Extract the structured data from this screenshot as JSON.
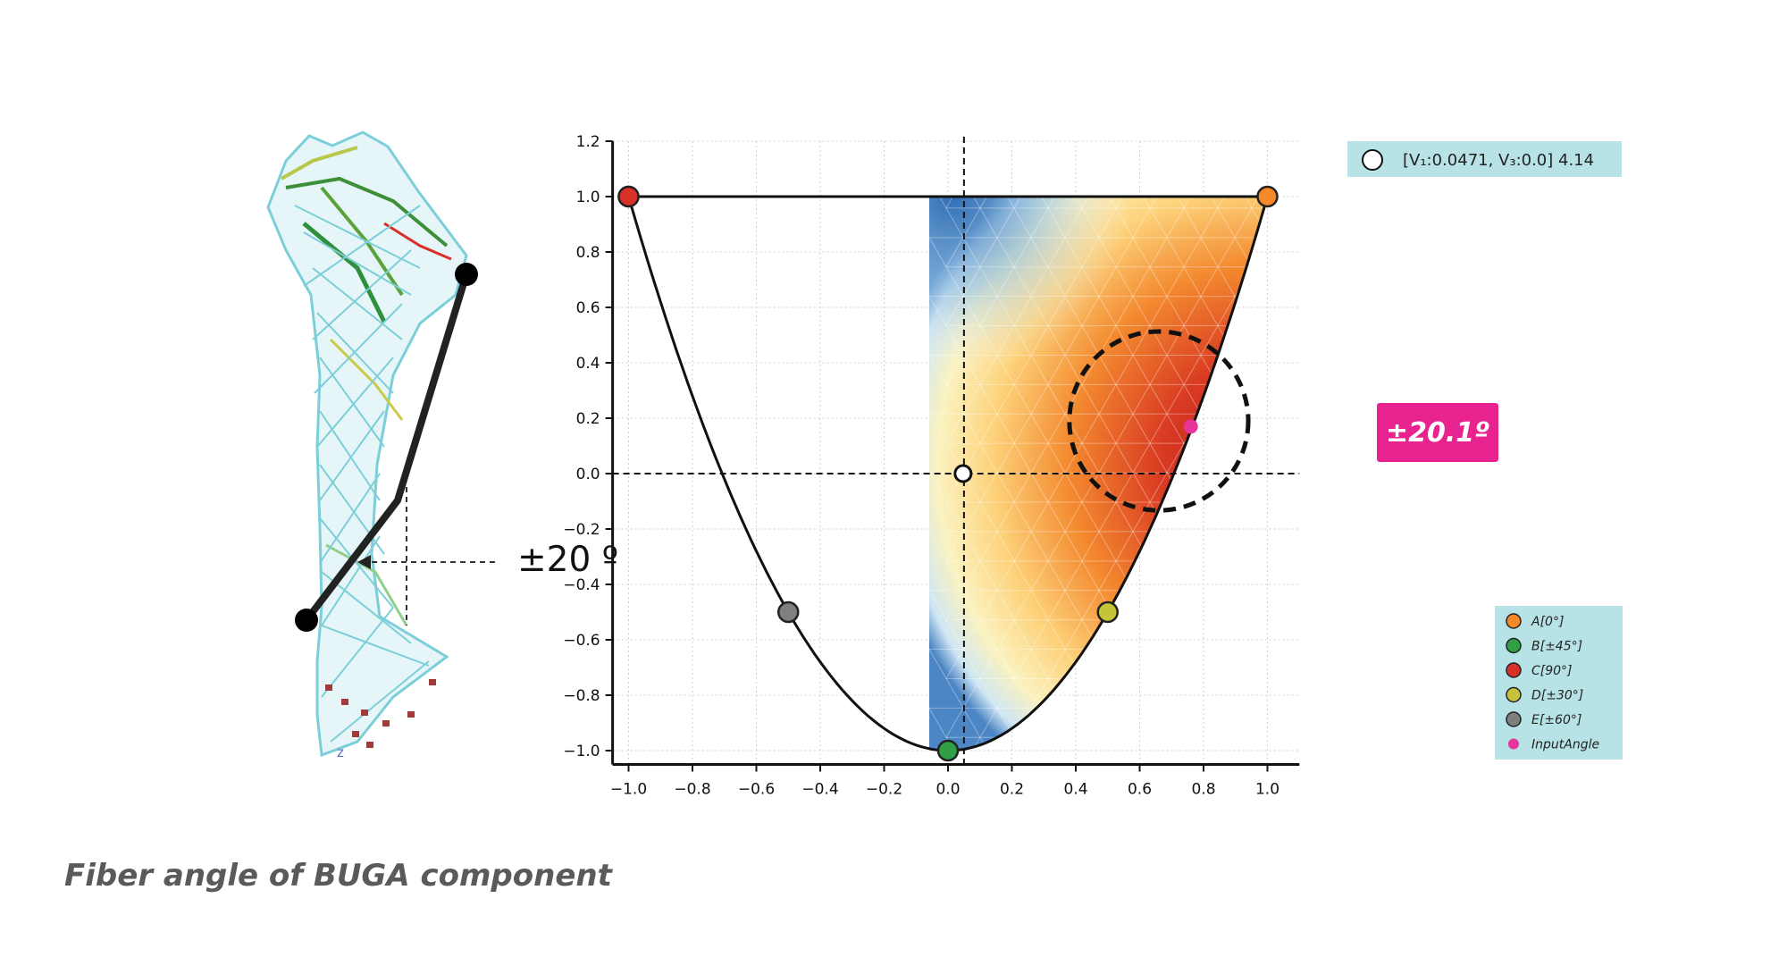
{
  "figure": {
    "caption": "Fiber angle of BUGA component",
    "angle_annotation": "±20 º",
    "axis_marker": "z"
  },
  "chart_data": {
    "type": "heatmap",
    "title": "",
    "xlabel": "",
    "ylabel": "",
    "xlim": [
      -1.05,
      1.1
    ],
    "ylim": [
      -1.05,
      1.2
    ],
    "x_ticks": [
      -1.0,
      -0.8,
      -0.6,
      -0.4,
      -0.2,
      0.0,
      0.2,
      0.4,
      0.6,
      0.8,
      1.0
    ],
    "y_ticks": [
      -1.0,
      -0.8,
      -0.6,
      -0.4,
      -0.2,
      0.0,
      0.2,
      0.4,
      0.6,
      0.8,
      1.0,
      1.2
    ],
    "grid": true,
    "domain_boundary": "V3 = 2*V1^2 - 1 for V1 in [-1, 1], closed by V3 = 1",
    "crosshair": {
      "x": 0.05,
      "y": 0.0
    },
    "selected_point": {
      "label": "[V1:0.0471, V3:0.0] 4.14",
      "x": 0.0471,
      "y": 0.0,
      "value": 4.14
    },
    "info_box": {
      "text": "[V₁:0.0471, V₃:0.0] 4.14",
      "placement": "top-right"
    },
    "callout": {
      "label": "±20.1º",
      "color": "#e8238f"
    },
    "circle_center": [
      0.66,
      0.19
    ],
    "circle_radius": 0.28,
    "points": [
      {
        "name": "A[0°]",
        "color": "#f5892a",
        "coords": [
          [
            -1.0,
            1.0
          ],
          [
            1.0,
            1.0
          ]
        ]
      },
      {
        "name": "B[±45°]",
        "color": "#2fa046",
        "coords": [
          [
            0.0,
            -1.0
          ]
        ]
      },
      {
        "name": "C[90°]",
        "color": "#d8312a",
        "coords": [
          [
            -1.0,
            1.0
          ]
        ]
      },
      {
        "name": "D[±30°]",
        "color": "#c4c33a",
        "coords": [
          [
            0.5,
            -0.5
          ]
        ]
      },
      {
        "name": "E[±60°]",
        "color": "#7f7f7f",
        "coords": [
          [
            -0.5,
            -0.5
          ]
        ]
      },
      {
        "name": "InputAngle",
        "color": "#e8349a",
        "coords": [
          [
            0.76,
            0.17
          ]
        ]
      }
    ],
    "legend_placement": "bottom-right",
    "colormap": "reds-yellow-blue"
  }
}
